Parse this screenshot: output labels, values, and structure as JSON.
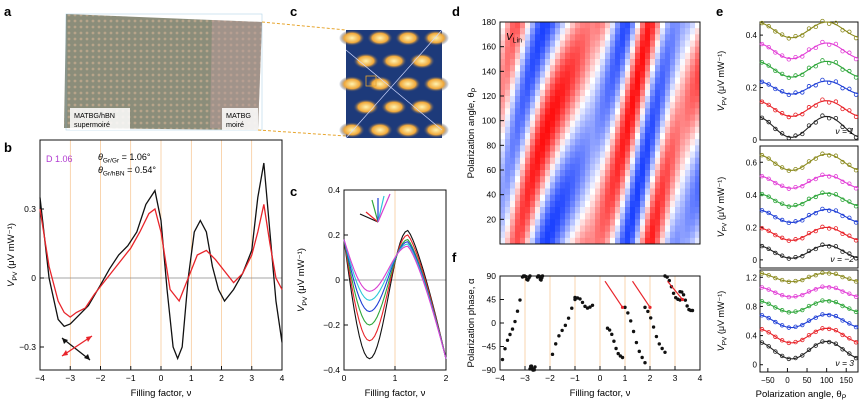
{
  "panels": {
    "a": {
      "letter": "a",
      "left_label_line1": "MATBG/hBN",
      "left_label_line2": "supermoiré",
      "right_label_line1": "MATBG",
      "right_label_line2": "moiré"
    },
    "b": {
      "letter": "b",
      "device": "D 1.06",
      "theta1_sym": "θ",
      "theta1_sub": "Gr/Gr",
      "theta1_val": " = 1.06°",
      "theta2_sym": "θ",
      "theta2_sub": "Gr/hBN",
      "theta2_val": " = 0.54°",
      "ylabel_sym": "V",
      "ylabel_sub": "PV",
      "ylabel_unit": " (μV mW⁻¹)",
      "xlabel": "Filling factor, ν",
      "xticks": [
        "−4",
        "−3",
        "−2",
        "−1",
        "0",
        "1",
        "2",
        "3",
        "4"
      ],
      "yticks": [
        "0.3",
        "0",
        "−0.3"
      ]
    },
    "c_top": {
      "letter": "c"
    },
    "c_bottom": {
      "letter": "c",
      "ylabel_sym": "V",
      "ylabel_sub": "PV",
      "ylabel_unit": " (μV mW⁻¹)",
      "xlabel": "Filling factor, ν",
      "xticks": [
        "0",
        "1",
        "2"
      ],
      "yticks": [
        "0.4",
        "0.2",
        "0",
        "−0.2",
        "−0.4"
      ]
    },
    "d": {
      "letter": "d",
      "map_label_sym": "V",
      "map_label_sub": "Lin",
      "ylabel": "Polarization angle, θ",
      "ylabel_sub": "P",
      "yticks": [
        "180",
        "160",
        "140",
        "120",
        "100",
        "80",
        "60",
        "40",
        "20"
      ]
    },
    "e": {
      "letter": "e",
      "ylabel_sym": "V",
      "ylabel_sub": "PV",
      "ylabel_unit": " (μV mW⁻¹)",
      "xlabel": "Polarization angle, θ",
      "xlabel_sub": "P",
      "xticks": [
        "−50",
        "0",
        "50",
        "100",
        "150"
      ],
      "sub1": {
        "nu_label": "ν = 1",
        "yticks": [
          "0.4",
          "0.2",
          "0"
        ]
      },
      "sub2": {
        "nu_label": "ν = −2",
        "yticks": [
          "0.6",
          "0.4",
          "0.2",
          "0"
        ]
      },
      "sub3": {
        "nu_label": "ν = 3",
        "yticks": [
          "1.2",
          "0.8",
          "0.4",
          "0"
        ]
      }
    },
    "f": {
      "letter": "f",
      "ylabel": "Polarization phase, α",
      "xlabel": "Filling factor, ν",
      "xticks": [
        "−4",
        "−3",
        "−2",
        "−1",
        "0",
        "1",
        "2",
        "3",
        "4"
      ],
      "yticks": [
        "90",
        "45",
        "0",
        "−45",
        "−90"
      ]
    }
  },
  "colors": {
    "red": "#e8242a",
    "black": "#111111",
    "orange_grid": "#f5b97a",
    "magenta": "#b03ad0",
    "series_e": [
      "#8b8a1e",
      "#e23fd6",
      "#2ea63a",
      "#1f3fd6",
      "#e8242a",
      "#222222"
    ]
  },
  "chart_data": [
    {
      "id": "b",
      "type": "line",
      "xlabel": "Filling factor, ν",
      "ylabel": "V_PV (μV mW⁻¹)",
      "xlim": [
        -4,
        4
      ],
      "ylim": [
        -0.4,
        0.6
      ],
      "series": [
        {
          "name": "black",
          "x": [
            -4,
            -3.7,
            -3.4,
            -3.2,
            -3.0,
            -2.7,
            -2.4,
            -2.0,
            -1.7,
            -1.4,
            -1.1,
            -0.8,
            -0.5,
            -0.2,
            0.0,
            0.2,
            0.4,
            0.55,
            0.7,
            0.9,
            1.1,
            1.3,
            1.5,
            1.7,
            1.9,
            2.1,
            2.4,
            2.7,
            3.0,
            3.2,
            3.4,
            3.6,
            3.8,
            4.0
          ],
          "y": [
            0.35,
            0.0,
            -0.18,
            -0.21,
            -0.2,
            -0.16,
            -0.12,
            -0.03,
            0.04,
            0.1,
            0.14,
            0.2,
            0.32,
            0.38,
            0.25,
            -0.05,
            -0.3,
            -0.35,
            -0.3,
            0.0,
            0.2,
            0.25,
            0.2,
            0.05,
            -0.05,
            -0.1,
            -0.05,
            0.02,
            0.12,
            0.35,
            0.5,
            0.2,
            -0.1,
            -0.28
          ]
        },
        {
          "name": "red",
          "x": [
            -4,
            -3.7,
            -3.4,
            -3.2,
            -3.0,
            -2.8,
            -2.5,
            -2.2,
            -1.9,
            -1.6,
            -1.3,
            -1.0,
            -0.7,
            -0.4,
            -0.2,
            0.0,
            0.3,
            0.6,
            0.9,
            1.2,
            1.5,
            1.8,
            2.1,
            2.4,
            2.7,
            3.0,
            3.2,
            3.4,
            3.6,
            3.8,
            4.0
          ],
          "y": [
            0.3,
            0.05,
            -0.1,
            -0.15,
            -0.17,
            -0.15,
            -0.13,
            -0.07,
            -0.02,
            0.03,
            0.08,
            0.13,
            0.2,
            0.28,
            0.3,
            0.2,
            -0.05,
            -0.1,
            0.0,
            0.1,
            0.12,
            0.08,
            0.03,
            -0.02,
            0.02,
            0.1,
            0.2,
            0.32,
            0.15,
            0.0,
            -0.05
          ]
        }
      ]
    },
    {
      "id": "c_bottom",
      "type": "line",
      "xlim": [
        0,
        2
      ],
      "ylim": [
        -0.4,
        0.4
      ],
      "series": [
        {
          "name": "black",
          "y0": -0.35,
          "ypeak": 0.22
        },
        {
          "name": "red",
          "y0": -0.27,
          "ypeak": 0.2
        },
        {
          "name": "green",
          "y0": -0.2,
          "ypeak": 0.18
        },
        {
          "name": "blue",
          "y0": -0.14,
          "ypeak": 0.17
        },
        {
          "name": "cyan",
          "y0": -0.09,
          "ypeak": 0.16
        },
        {
          "name": "magenta",
          "y0": -0.05,
          "ypeak": 0.15
        }
      ]
    },
    {
      "id": "d",
      "type": "heatmap",
      "ylabel": "Polarization angle, θP",
      "ylim": [
        0,
        180
      ]
    },
    {
      "id": "e",
      "type": "scatter",
      "xlim": [
        -70,
        180
      ],
      "subpanels": [
        {
          "nu": "1",
          "ylim": [
            0,
            0.45
          ],
          "offsets": [
            0.42,
            0.34,
            0.27,
            0.2,
            0.12,
            0.05
          ],
          "amps": [
            0.03,
            0.03,
            0.03,
            0.025,
            0.03,
            0.04
          ]
        },
        {
          "nu": "-2",
          "ylim": [
            -0.05,
            0.7
          ],
          "offsets": [
            0.6,
            0.48,
            0.37,
            0.27,
            0.16,
            0.05
          ],
          "amps": [
            0.05,
            0.04,
            0.04,
            0.04,
            0.04,
            0.04
          ]
        },
        {
          "nu": "3",
          "ylim": [
            -0.1,
            1.3
          ],
          "offsets": [
            1.2,
            1.0,
            0.8,
            0.6,
            0.4,
            0.2
          ],
          "amps": [
            0.06,
            0.07,
            0.08,
            0.09,
            0.1,
            0.12
          ]
        }
      ]
    },
    {
      "id": "f",
      "type": "scatter",
      "xlabel": "Filling factor, ν",
      "ylabel": "Polarization phase, α",
      "xlim": [
        -4,
        4
      ],
      "ylim": [
        -90,
        90
      ]
    }
  ]
}
